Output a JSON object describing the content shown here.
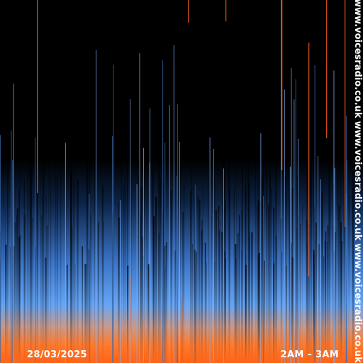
{
  "date": "28/03/2025",
  "time": "2AM – 3AM",
  "website": "www.voicesradio.co.uk"
}
